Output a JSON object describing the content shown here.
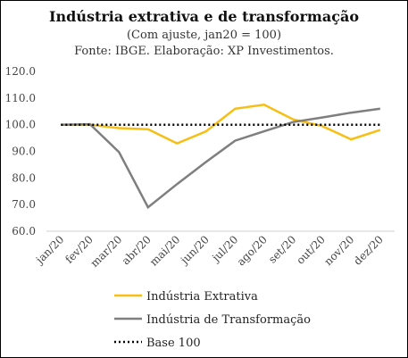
{
  "chart_data": {
    "type": "line",
    "title": "Indústria extrativa e de transformação",
    "subtitle": "(Com ajuste, jan20 = 100)",
    "source": "Fonte: IBGE. Elaboração: XP Investimentos.",
    "categories": [
      "jan/20",
      "fev/20",
      "mar/20",
      "abr/20",
      "mai/20",
      "jun/20",
      "jul/20",
      "ago/20",
      "set/20",
      "out/20",
      "nov/20",
      "dez/20"
    ],
    "ylim": [
      60,
      120
    ],
    "yticks": [
      "60.0",
      "70.0",
      "80.0",
      "90.0",
      "100.0",
      "110.0",
      "120.0"
    ],
    "legend_position": "bottom",
    "series": [
      {
        "name": "Indústria Extrativa",
        "color": "#F7BE14",
        "style": "solid",
        "values": [
          100,
          100,
          98.7,
          98.3,
          93,
          97.5,
          106,
          107.5,
          102,
          99.5,
          94.5,
          98
        ]
      },
      {
        "name": "Indústria de Transformação",
        "color": "#7F7F7F",
        "style": "solid",
        "values": [
          100,
          100.2,
          89.7,
          69,
          77.7,
          86,
          94,
          97.5,
          101,
          102.7,
          104.5,
          106
        ]
      },
      {
        "name": "Base 100",
        "color": "#000000",
        "style": "dotted",
        "values": [
          100,
          100,
          100,
          100,
          100,
          100,
          100,
          100,
          100,
          100,
          100,
          100
        ]
      }
    ]
  }
}
